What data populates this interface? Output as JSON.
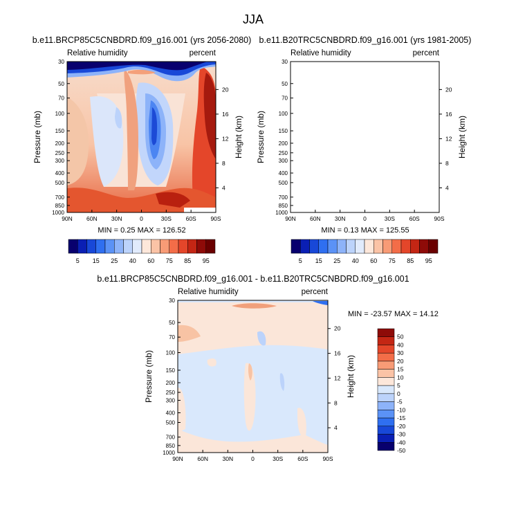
{
  "figure": {
    "title": "JJA"
  },
  "chart_data": [
    {
      "type": "heatmap",
      "panel": "left",
      "title": "b.e11.BRCP85C5CNBDRD.f09_g16.001 (yrs 2056-2080)",
      "variable": "Relative humidity",
      "units": "percent",
      "ylabel": "Pressure (mb)",
      "right_ylabel": "Height (km)",
      "x_ticks": [
        "90N",
        "60N",
        "30N",
        "0",
        "30S",
        "60S",
        "90S"
      ],
      "y_ticks": [
        "30",
        "50",
        "70",
        "100",
        "150",
        "200",
        "250",
        "300",
        "400",
        "500",
        "700",
        "850",
        "1000"
      ],
      "height_ticks": [
        "20",
        "16",
        "12",
        "8",
        "4"
      ],
      "stats": "MIN =  0.25  MAX = 126.52",
      "contour_levels": [
        5,
        10,
        15,
        20,
        25,
        30,
        40,
        50,
        60,
        70,
        75,
        80,
        85,
        90,
        95
      ]
    },
    {
      "type": "heatmap",
      "panel": "right",
      "title": "b.e11.B20TRC5CNBDRD.f09_g16.001 (yrs 1981-2005)",
      "variable": "Relative humidity",
      "units": "percent",
      "ylabel": "Pressure (mb)",
      "right_ylabel": "Height (km)",
      "x_ticks": [
        "90N",
        "60N",
        "30N",
        "0",
        "30S",
        "60S",
        "90S"
      ],
      "y_ticks": [
        "30",
        "50",
        "70",
        "100",
        "150",
        "200",
        "250",
        "300",
        "400",
        "500",
        "700",
        "850",
        "1000"
      ],
      "height_ticks": [
        "20",
        "16",
        "12",
        "8",
        "4"
      ],
      "stats": "MIN =  0.13  MAX = 125.55",
      "contour_levels": [
        5,
        10,
        15,
        20,
        25,
        30,
        40,
        50,
        60,
        70,
        75,
        80,
        85,
        90,
        95
      ]
    },
    {
      "type": "heatmap",
      "panel": "difference",
      "title": "b.e11.BRCP85C5CNBDRD.f09_g16.001 - b.e11.B20TRC5CNBDRD.f09_g16.001",
      "variable": "Relative humidity",
      "units": "percent",
      "ylabel": "Pressure (mb)",
      "right_ylabel": "Height (km)",
      "x_ticks": [
        "90N",
        "60N",
        "30N",
        "0",
        "30S",
        "60S",
        "90S"
      ],
      "y_ticks": [
        "30",
        "50",
        "70",
        "100",
        "150",
        "200",
        "250",
        "300",
        "400",
        "500",
        "700",
        "850",
        "1000"
      ],
      "height_ticks": [
        "20",
        "16",
        "12",
        "8",
        "4"
      ],
      "stats": "MIN = -23.57  MAX = 14.12",
      "contour_levels": [
        -50,
        -40,
        -30,
        -20,
        -15,
        -10,
        -5,
        0,
        5,
        10,
        15,
        20,
        30,
        40,
        50
      ]
    }
  ],
  "colorbars": {
    "absolute": {
      "labels": [
        "5",
        "15",
        "25",
        "40",
        "60",
        "75",
        "85",
        "95"
      ],
      "colors": [
        "#08006e",
        "#0a1fb4",
        "#1848d8",
        "#2f6ff0",
        "#5b92f6",
        "#8db3f9",
        "#bcd3fb",
        "#e1ebfc",
        "#fde7da",
        "#fbc3a6",
        "#f89b76",
        "#f36d48",
        "#e4462a",
        "#c42614",
        "#8e0b08",
        "#6a0000"
      ]
    },
    "difference": {
      "labels": [
        "50",
        "40",
        "30",
        "20",
        "15",
        "10",
        "5",
        "0",
        "-5",
        "-10",
        "-15",
        "-20",
        "-30",
        "-40",
        "-50"
      ],
      "colors": [
        "#8e0b08",
        "#c42614",
        "#e4462a",
        "#f36d48",
        "#f89b76",
        "#fbc3a6",
        "#fde7da",
        "#d9e8fc",
        "#bcd3fb",
        "#8db3f9",
        "#5b92f6",
        "#2f6ff0",
        "#1848d8",
        "#0a1fb4",
        "#08006e"
      ]
    }
  }
}
